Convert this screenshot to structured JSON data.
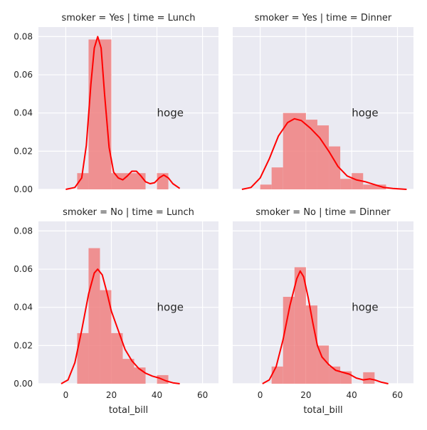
{
  "chart_data": [
    {
      "type": "histogram+kde",
      "title": "smoker = Yes | time = Lunch",
      "xlim": [
        -12,
        67
      ],
      "ylim": [
        0,
        0.085
      ],
      "xticks": [
        0,
        20,
        40,
        60
      ],
      "yticks": [
        0,
        0.02,
        0.04,
        0.06,
        0.08
      ],
      "ytick_labels": [
        "0.00",
        "0.02",
        "0.04",
        "0.06",
        "0.08"
      ],
      "xlabel": "",
      "ylabel": "",
      "bins": [
        [
          5,
          10,
          0.0085
        ],
        [
          10,
          20,
          0.0785
        ],
        [
          20,
          35,
          0.0085
        ],
        [
          40,
          45,
          0.0085
        ]
      ],
      "kde": [
        [
          0,
          0.0
        ],
        [
          4,
          0.001
        ],
        [
          7,
          0.006
        ],
        [
          9,
          0.023
        ],
        [
          11,
          0.055
        ],
        [
          12.5,
          0.074
        ],
        [
          14,
          0.08
        ],
        [
          15.5,
          0.074
        ],
        [
          17,
          0.05
        ],
        [
          19,
          0.022
        ],
        [
          21,
          0.009
        ],
        [
          23,
          0.006
        ],
        [
          25,
          0.005
        ],
        [
          27,
          0.007
        ],
        [
          29,
          0.0095
        ],
        [
          31,
          0.0095
        ],
        [
          33,
          0.007
        ],
        [
          35,
          0.004
        ],
        [
          37,
          0.003
        ],
        [
          39,
          0.0035
        ],
        [
          41,
          0.006
        ],
        [
          43,
          0.0075
        ],
        [
          45,
          0.006
        ],
        [
          47,
          0.003
        ],
        [
          50,
          0.0005
        ]
      ],
      "annotation": {
        "text": "hoge",
        "x": 40,
        "y": 0.04
      },
      "colors": {
        "bars": "#f08080",
        "kde": "#ff0000",
        "background": "#eaeaf2",
        "grid": "#ffffff"
      },
      "grid": true
    },
    {
      "type": "histogram+kde",
      "title": "smoker = Yes | time = Dinner",
      "xlim": [
        -12,
        67
      ],
      "ylim": [
        0,
        0.085
      ],
      "xticks": [
        0,
        20,
        40,
        60
      ],
      "yticks": [
        0,
        0.02,
        0.04,
        0.06,
        0.08
      ],
      "ytick_labels": [
        "0.00",
        "0.02",
        "0.04",
        "0.06",
        "0.08"
      ],
      "xlabel": "",
      "ylabel": "",
      "bins": [
        [
          0,
          5,
          0.0025
        ],
        [
          5,
          10,
          0.0115
        ],
        [
          10,
          20,
          0.04
        ],
        [
          20,
          25,
          0.0365
        ],
        [
          25,
          30,
          0.0335
        ],
        [
          30,
          35,
          0.0225
        ],
        [
          35,
          40,
          0.0055
        ],
        [
          40,
          45,
          0.0085
        ],
        [
          45,
          55,
          0.0025
        ]
      ],
      "kde": [
        [
          -8,
          0.0
        ],
        [
          -4,
          0.001
        ],
        [
          0,
          0.006
        ],
        [
          4,
          0.016
        ],
        [
          8,
          0.028
        ],
        [
          12,
          0.035
        ],
        [
          15,
          0.037
        ],
        [
          18,
          0.036
        ],
        [
          22,
          0.032
        ],
        [
          26,
          0.027
        ],
        [
          30,
          0.02
        ],
        [
          34,
          0.012
        ],
        [
          38,
          0.007
        ],
        [
          42,
          0.005
        ],
        [
          46,
          0.004
        ],
        [
          50,
          0.0025
        ],
        [
          54,
          0.001
        ],
        [
          58,
          0.0005
        ],
        [
          64,
          0.0
        ]
      ],
      "annotation": {
        "text": "hoge",
        "x": 40,
        "y": 0.04
      },
      "colors": {
        "bars": "#f08080",
        "kde": "#ff0000",
        "background": "#eaeaf2",
        "grid": "#ffffff"
      },
      "grid": true
    },
    {
      "type": "histogram+kde",
      "title": "smoker = No | time = Lunch",
      "xlim": [
        -12,
        67
      ],
      "ylim": [
        0,
        0.085
      ],
      "xticks": [
        0,
        20,
        40,
        60
      ],
      "xtick_labels": [
        "0",
        "20",
        "40",
        "60"
      ],
      "yticks": [
        0,
        0.02,
        0.04,
        0.06,
        0.08
      ],
      "ytick_labels": [
        "0.00",
        "0.02",
        "0.04",
        "0.06",
        "0.08"
      ],
      "xlabel": "total_bill",
      "ylabel": "",
      "bins": [
        [
          5,
          10,
          0.0265
        ],
        [
          10,
          15,
          0.071
        ],
        [
          15,
          20,
          0.049
        ],
        [
          20,
          25,
          0.0265
        ],
        [
          25,
          30,
          0.013
        ],
        [
          30,
          35,
          0.0085
        ],
        [
          35,
          40,
          0.0
        ],
        [
          40,
          45,
          0.0045
        ]
      ],
      "kde": [
        [
          -2,
          0.0
        ],
        [
          1,
          0.002
        ],
        [
          4,
          0.011
        ],
        [
          7,
          0.028
        ],
        [
          10,
          0.047
        ],
        [
          12.5,
          0.058
        ],
        [
          14,
          0.06
        ],
        [
          16,
          0.057
        ],
        [
          18,
          0.048
        ],
        [
          20,
          0.038
        ],
        [
          23,
          0.028
        ],
        [
          26,
          0.018
        ],
        [
          29,
          0.012
        ],
        [
          32,
          0.008
        ],
        [
          35,
          0.0055
        ],
        [
          38,
          0.004
        ],
        [
          41,
          0.003
        ],
        [
          44,
          0.0015
        ],
        [
          47,
          0.0005
        ],
        [
          50,
          0.0
        ]
      ],
      "annotation": {
        "text": "hoge",
        "x": 40,
        "y": 0.04
      },
      "colors": {
        "bars": "#f08080",
        "kde": "#ff0000",
        "background": "#eaeaf2",
        "grid": "#ffffff"
      },
      "grid": true
    },
    {
      "type": "histogram+kde",
      "title": "smoker = No | time = Dinner",
      "xlim": [
        -12,
        67
      ],
      "ylim": [
        0,
        0.085
      ],
      "xticks": [
        0,
        20,
        40,
        60
      ],
      "xtick_labels": [
        "0",
        "20",
        "40",
        "60"
      ],
      "yticks": [
        0,
        0.02,
        0.04,
        0.06,
        0.08
      ],
      "ytick_labels": [
        "0.00",
        "0.02",
        "0.04",
        "0.06",
        "0.08"
      ],
      "xlabel": "total_bill",
      "ylabel": "",
      "bins": [
        [
          5,
          10,
          0.009
        ],
        [
          10,
          15,
          0.0455
        ],
        [
          15,
          20,
          0.061
        ],
        [
          20,
          25,
          0.041
        ],
        [
          25,
          30,
          0.02
        ],
        [
          30,
          35,
          0.009
        ],
        [
          35,
          40,
          0.0065
        ],
        [
          40,
          45,
          0.0
        ],
        [
          45,
          50,
          0.006
        ],
        [
          50,
          55,
          0.0
        ]
      ],
      "kde": [
        [
          1,
          0.0
        ],
        [
          4,
          0.002
        ],
        [
          7,
          0.009
        ],
        [
          10,
          0.023
        ],
        [
          13,
          0.041
        ],
        [
          16,
          0.055
        ],
        [
          17.5,
          0.059
        ],
        [
          19,
          0.056
        ],
        [
          21,
          0.045
        ],
        [
          23,
          0.032
        ],
        [
          25,
          0.02
        ],
        [
          27,
          0.014
        ],
        [
          30,
          0.01
        ],
        [
          33,
          0.007
        ],
        [
          36,
          0.006
        ],
        [
          39,
          0.005
        ],
        [
          42,
          0.003
        ],
        [
          45,
          0.002
        ],
        [
          48,
          0.0025
        ],
        [
          50,
          0.002
        ],
        [
          53,
          0.0008
        ],
        [
          56,
          0.0
        ]
      ],
      "annotation": {
        "text": "hoge",
        "x": 40,
        "y": 0.04
      },
      "colors": {
        "bars": "#f08080",
        "kde": "#ff0000",
        "background": "#eaeaf2",
        "grid": "#ffffff"
      },
      "grid": true
    }
  ]
}
